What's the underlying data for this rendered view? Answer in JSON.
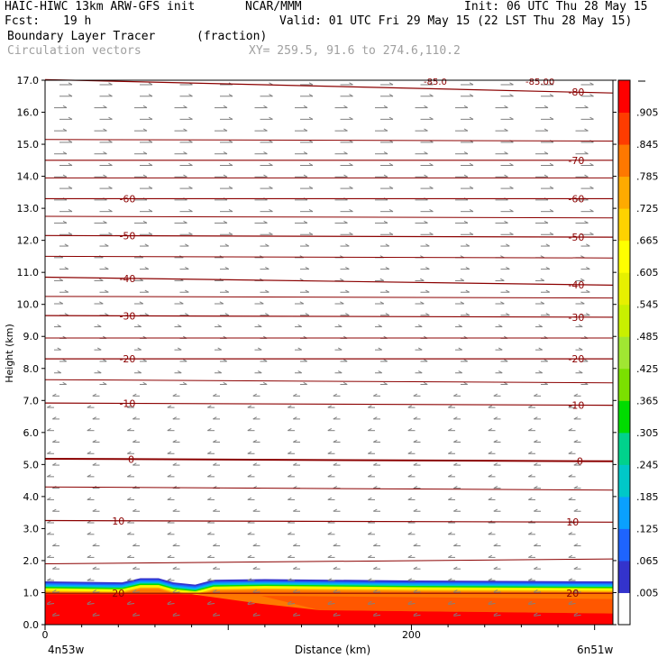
{
  "header": {
    "model": "HAIC-HIWC 13km ARW-GFS init",
    "org": "NCAR/MMM",
    "init": "Init: 06 UTC Thu 28 May 15",
    "fcst_label": "Fcst:",
    "fcst_value": "19 h",
    "valid": "Valid: 01 UTC Fri 29 May 15 (22 LST Thu 28 May 15)",
    "field_name": "Boundary Layer Tracer",
    "field_units": "(fraction)",
    "vectors_label": "Circulation vectors",
    "xy_label": "XY= 259.5, 91.6 to 274.6,110.2"
  },
  "colors": {
    "contour": "#8b0000",
    "vector": "#808080"
  },
  "chart_data": {
    "type": "heatmap",
    "ylabel": "Height (km)",
    "xlabel": "Distance (km)",
    "x_left_label": "4n53w",
    "x_right_label": "6n51w",
    "xlim": [
      0,
      310
    ],
    "ylim": [
      0,
      17
    ],
    "x_ticks": [
      0,
      200
    ],
    "y_ticks": [
      "0.0",
      "1.0",
      "2.0",
      "3.0",
      "4.0",
      "5.0",
      "6.0",
      "7.0",
      "8.0",
      "9.0",
      "10.0",
      "11.0",
      "12.0",
      "13.0",
      "14.0",
      "15.0",
      "16.0",
      "17.0"
    ],
    "colorbar_labels": [
      ".005",
      ".065",
      ".125",
      ".185",
      ".245",
      ".305",
      ".365",
      ".425",
      ".485",
      ".545",
      ".605",
      ".665",
      ".725",
      ".785",
      ".845",
      ".905"
    ],
    "colorbar_colors": [
      "#ffffff",
      "#3333cc",
      "#1e64ff",
      "#0aa0ff",
      "#00c8c8",
      "#00d28c",
      "#00dc00",
      "#7be000",
      "#a0e632",
      "#c8f000",
      "#e6f000",
      "#ffff00",
      "#ffd200",
      "#ffaa00",
      "#ff7800",
      "#ff3c00",
      "#ff0000"
    ],
    "temperature_contours": [
      {
        "value": 20,
        "label": "20",
        "y": [
          0.98,
          0.98
        ],
        "labels_at": [
          40,
          288
        ]
      },
      {
        "value": 10,
        "label": "10",
        "y": [
          3.25,
          3.2
        ],
        "labels_at": [
          40,
          288
        ]
      },
      {
        "value": 0,
        "label": "0",
        "y": [
          5.18,
          5.1
        ],
        "labels_at": [
          47,
          292
        ]
      },
      {
        "value": -10,
        "label": "-10",
        "y": [
          6.92,
          6.85
        ],
        "labels_at": [
          45,
          290
        ]
      },
      {
        "value": -20,
        "label": "-20",
        "y": [
          8.3,
          8.3
        ],
        "labels_at": [
          45,
          290
        ]
      },
      {
        "value": -30,
        "label": "-30",
        "y": [
          9.65,
          9.6
        ],
        "labels_at": [
          45,
          290
        ]
      },
      {
        "value": -40,
        "label": "-40",
        "y": [
          10.85,
          10.6
        ],
        "labels_at": [
          45,
          290
        ]
      },
      {
        "value": -50,
        "label": "-50",
        "y": [
          12.15,
          12.1
        ],
        "labels_at": [
          45,
          290
        ]
      },
      {
        "value": -60,
        "label": "-60",
        "y": [
          13.3,
          13.3
        ],
        "labels_at": [
          45,
          290
        ]
      },
      {
        "value": -70,
        "label": "-70",
        "y": [
          14.5,
          14.5
        ],
        "labels_at": [
          290
        ]
      },
      {
        "value": -80,
        "label": "-80",
        "y": [
          17.02,
          16.6
        ],
        "labels_at": [
          290
        ]
      }
    ],
    "extra_contours_y": [
      1.9,
      2.05,
      4.3,
      4.2,
      7.65,
      7.55,
      8.95,
      8.95,
      10.25,
      10.2,
      11.5,
      11.45,
      12.75,
      12.7,
      13.95,
      13.95,
      15.15,
      15.1
    ],
    "top_labels": [
      "-85.0",
      "-85.00"
    ],
    "tracer_surface_km": [
      [
        0,
        1.35
      ],
      [
        42,
        1.32
      ],
      [
        52,
        1.45
      ],
      [
        62,
        1.45
      ],
      [
        70,
        1.32
      ],
      [
        82,
        1.25
      ],
      [
        92,
        1.4
      ],
      [
        120,
        1.42
      ],
      [
        200,
        1.38
      ],
      [
        310,
        1.35
      ]
    ]
  }
}
